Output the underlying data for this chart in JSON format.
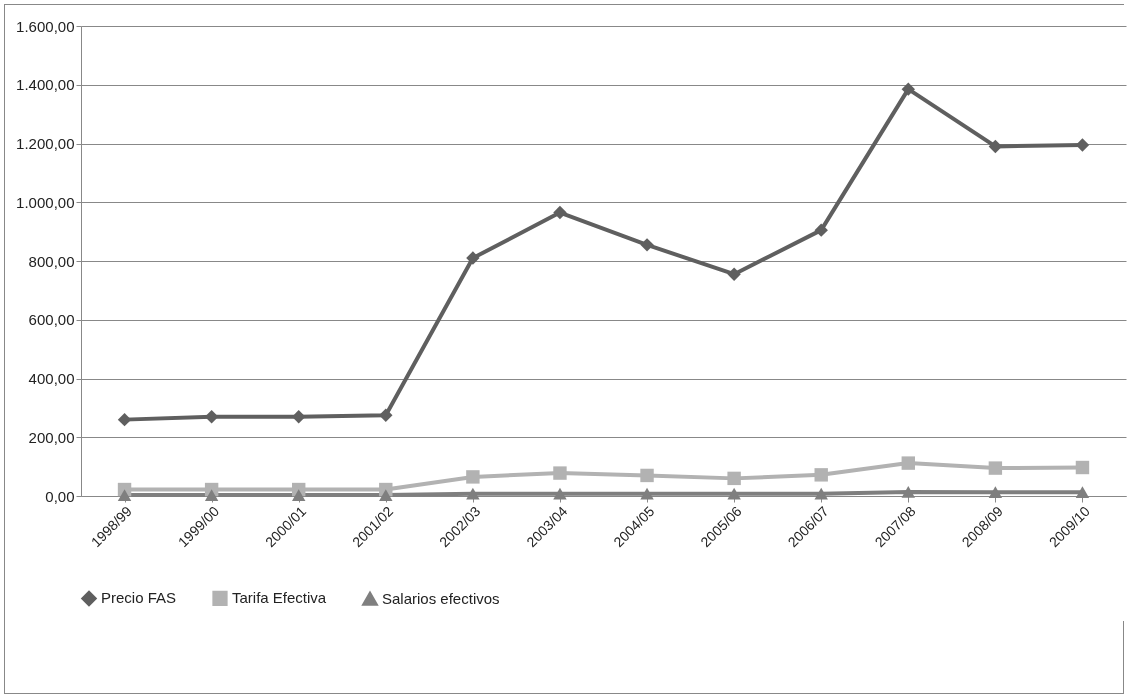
{
  "chart_data": {
    "type": "line",
    "categories": [
      "1998/99",
      "1999/00",
      "2000/01",
      "2001/02",
      "2002/03",
      "2003/04",
      "2004/05",
      "2005/06",
      "2006/07",
      "2007/08",
      "2008/09",
      "2009/10"
    ],
    "series": [
      {
        "name": "Precio FAS",
        "color": "#5f5f5f",
        "marker": "diamond",
        "values": [
          260,
          270,
          270,
          275,
          810,
          965,
          855,
          755,
          905,
          1385,
          1190,
          1195
        ]
      },
      {
        "name": "Tarifa Efectiva",
        "color": "#b2b2b2",
        "marker": "square",
        "values": [
          22,
          22,
          22,
          22,
          65,
          78,
          70,
          60,
          72,
          112,
          95,
          97
        ]
      },
      {
        "name": "Salarios efectivos",
        "color": "#7f7f7f",
        "marker": "triangle",
        "values": [
          3,
          3,
          3,
          3,
          8,
          8,
          8,
          8,
          8,
          14,
          13,
          13
        ]
      }
    ],
    "ylim": [
      0,
      1600
    ],
    "yticks": [
      {
        "value": 0,
        "label": "0,00"
      },
      {
        "value": 200,
        "label": "200,00"
      },
      {
        "value": 400,
        "label": "400,00"
      },
      {
        "value": 600,
        "label": "600,00"
      },
      {
        "value": 800,
        "label": "800,00"
      },
      {
        "value": 1000,
        "label": "1.000,00"
      },
      {
        "value": 1200,
        "label": "1.200,00"
      },
      {
        "value": 1400,
        "label": "1.400,00"
      },
      {
        "value": 1600,
        "label": "1.600,00"
      }
    ],
    "grid": "y",
    "legend": "bottom",
    "line_style": "solid"
  }
}
